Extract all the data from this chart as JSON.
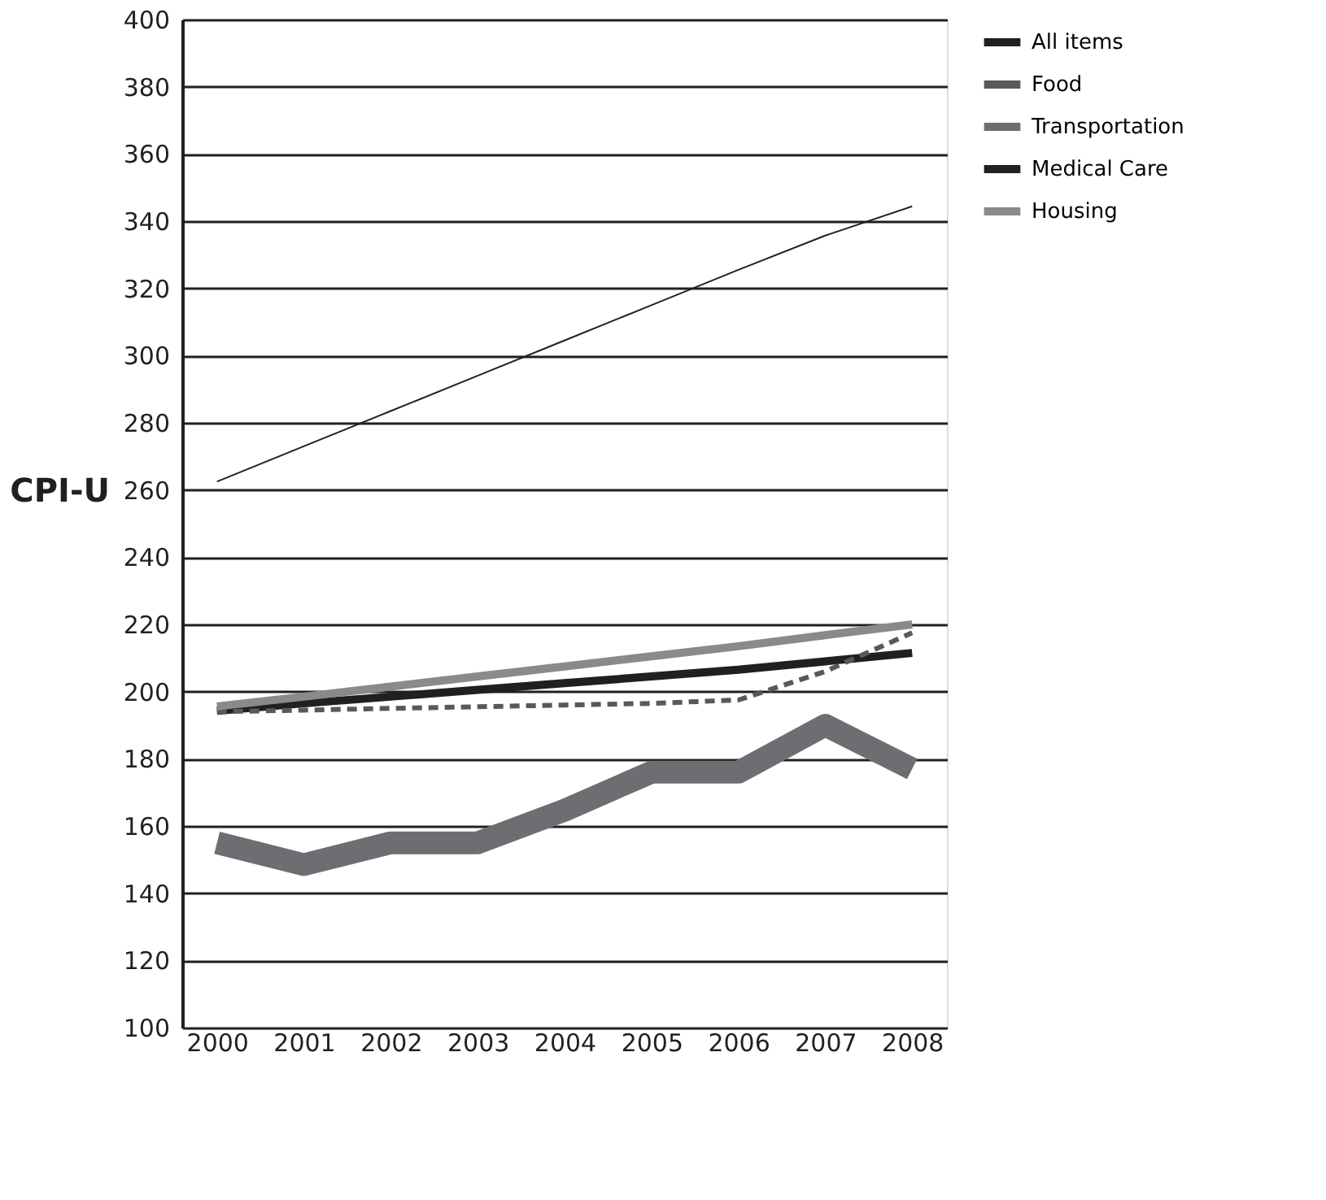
{
  "chart_data": {
    "type": "line",
    "ylabel": "CPI-U",
    "categories": [
      "2000",
      "2001",
      "2002",
      "2003",
      "2004",
      "2005",
      "2006",
      "2007",
      "2008"
    ],
    "series": [
      {
        "name": "All items",
        "color": "#231f20",
        "line_style": "solid",
        "values": [
          194.3,
          196.5,
          198.5,
          200.5,
          202.5,
          204.5,
          206.5,
          209,
          211.5
        ]
      },
      {
        "name": "Food",
        "color": "#58595b",
        "line_style": "dashed",
        "values": [
          194,
          194.5,
          195,
          195.5,
          196,
          196.5,
          197.5,
          206,
          217.5
        ]
      },
      {
        "name": "Transportation",
        "color": "#6d6e71",
        "line_style": "solid",
        "values": [
          155,
          148.5,
          155,
          155,
          164.7,
          176,
          176,
          190,
          177
        ]
      },
      {
        "name": "Medical Care",
        "color": "#231f20",
        "line_style": "solid",
        "values": [
          262.5,
          273,
          283.5,
          294,
          304.5,
          315,
          325.5,
          335.7,
          344.4
        ]
      },
      {
        "name": "Housing",
        "color": "#8a8a8c",
        "line_style": "solid",
        "values": [
          195.6,
          198.5,
          201.5,
          204.5,
          207.5,
          210.5,
          213.5,
          216.8,
          220
        ]
      }
    ],
    "ylim": [
      100,
      400
    ],
    "yticks": [
      100,
      120,
      140,
      160,
      180,
      200,
      220,
      240,
      260,
      280,
      300,
      320,
      340,
      360,
      380,
      400
    ],
    "grid": "y",
    "legend": "right",
    "marker": "none"
  }
}
